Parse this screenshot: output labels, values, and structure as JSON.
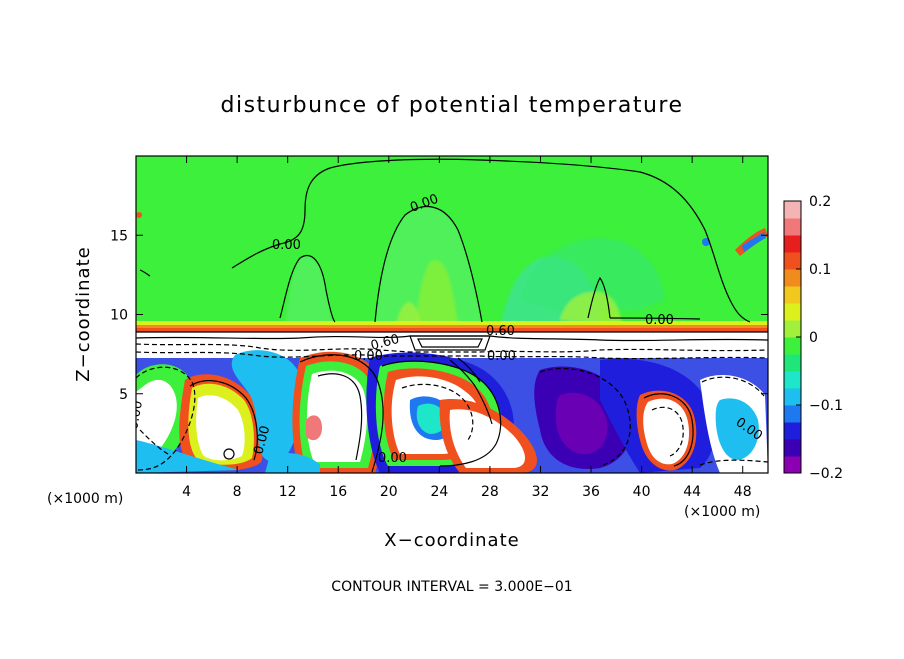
{
  "chart_data": {
    "type": "heatmap",
    "title": "disturbunce of potential temperature",
    "xlabel": "X−coordinate",
    "ylabel": "Z−coordinate",
    "x_unit": "(×1000 m)",
    "x_unit_right": "(×1000 m)",
    "xlim": [
      0,
      50
    ],
    "ylim": [
      0,
      20
    ],
    "x_ticks": [
      4,
      8,
      12,
      16,
      20,
      24,
      28,
      32,
      36,
      40,
      44,
      48
    ],
    "x_tick_labels": [
      "4",
      "8",
      "12",
      "16",
      "20",
      "24",
      "28",
      "32",
      "36",
      "40",
      "44",
      "48"
    ],
    "y_ticks": [
      5,
      10,
      15
    ],
    "y_tick_labels": [
      "5",
      "10",
      "15"
    ],
    "colorbar": {
      "range": [
        -0.2,
        0.2
      ],
      "ticks": [
        0.2,
        0.1,
        0,
        -0.1,
        -0.2
      ],
      "tick_labels": [
        "0.2",
        "0.1",
        "0",
        "−0.1",
        "−0.2"
      ],
      "colors": [
        "#8c00b4",
        "#3c00b4",
        "#1e1edc",
        "#1e78f0",
        "#1ebef0",
        "#1ee6c8",
        "#1ee678",
        "#3cf03c",
        "#a0f03c",
        "#dcf01e",
        "#f0c81e",
        "#f08c1e",
        "#f0501e",
        "#e61e1e",
        "#f07878",
        "#f5b4b4"
      ]
    },
    "contour_interval": "CONTOUR INTERVAL = 3.000E−01",
    "contour_labels": [
      "0.00",
      "0.00",
      "0.00",
      "0.00",
      "0.00",
      "0.00",
      "0.00",
      "0.00",
      "0.60",
      "0.60",
      "0.00"
    ]
  }
}
